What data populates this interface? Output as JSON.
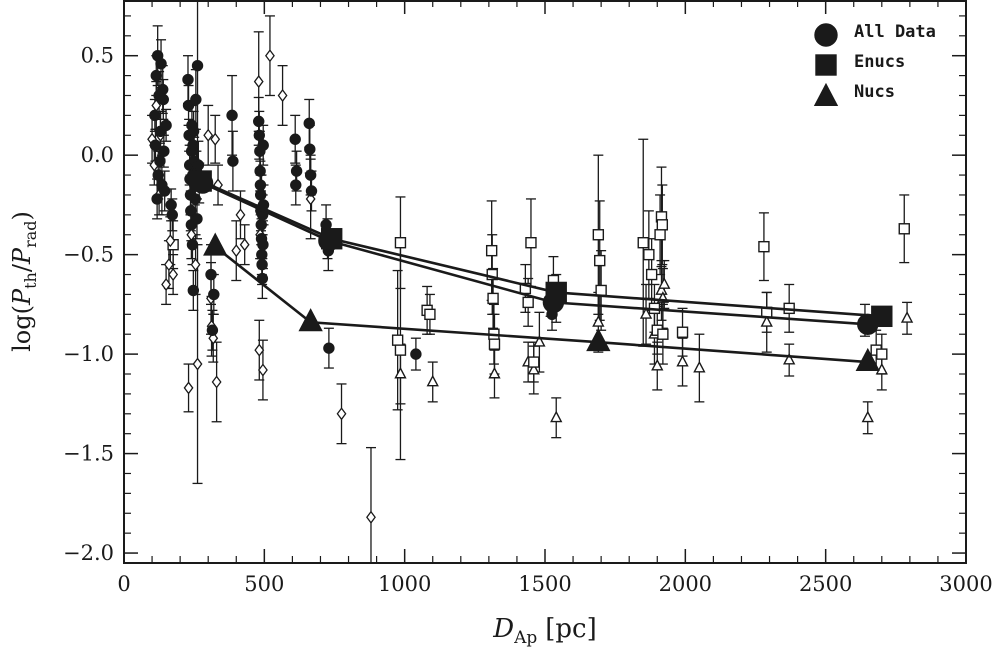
{
  "chart_data": {
    "type": "scatter",
    "x_axis": {
      "label_main": "D",
      "label_sub": "Ap",
      "label_unit": "[pc]",
      "range": [
        0,
        3000
      ],
      "ticks": [
        0,
        500,
        1000,
        1500,
        2000,
        2500,
        3000
      ],
      "tick_labels": [
        "0",
        "500",
        "1000",
        "1500",
        "2000",
        "2500",
        "3000"
      ]
    },
    "y_axis": {
      "label_prefix": "log(",
      "label_num": "P",
      "label_num_sub": "th",
      "label_sep": "/",
      "label_den": "P",
      "label_den_sub": "rad",
      "label_suffix": ")",
      "range": [
        -2.05,
        0.78
      ],
      "ticks": [
        0.5,
        0.0,
        -0.5,
        -1.0,
        -1.5,
        -2.0
      ],
      "tick_labels": [
        "0.5",
        "0.0",
        "−0.5",
        "−1.0",
        "−1.5",
        "−2.0"
      ]
    },
    "legend": {
      "position": "top-right",
      "entries": [
        {
          "label": "All Data",
          "marker": "circle"
        },
        {
          "label": "Enucs",
          "marker": "square"
        },
        {
          "label": "Nucs",
          "marker": "triangle"
        }
      ]
    },
    "mean_lines": [
      {
        "name": "All Data",
        "marker": "circle",
        "x": [
          280,
          730,
          1530,
          2650
        ],
        "y": [
          -0.14,
          -0.43,
          -0.74,
          -0.85
        ]
      },
      {
        "name": "Enucs",
        "marker": "square",
        "x": [
          275,
          740,
          1540,
          2700
        ],
        "y": [
          -0.13,
          -0.42,
          -0.69,
          -0.81
        ]
      },
      {
        "name": "Nucs",
        "marker": "triangle",
        "x": [
          325,
          665,
          1690,
          2650
        ],
        "y": [
          -0.46,
          -0.84,
          -0.94,
          -1.04
        ]
      }
    ],
    "points_filled_circle": [
      [
        110,
        0.2,
        0.08
      ],
      [
        112,
        0.05,
        0.08
      ],
      [
        115,
        0.4,
        0.1
      ],
      [
        118,
        -0.22,
        0.1
      ],
      [
        120,
        0.5,
        0.15
      ],
      [
        122,
        -0.1,
        0.12
      ],
      [
        125,
        0.3,
        0.12
      ],
      [
        128,
        -0.03,
        0.09
      ],
      [
        130,
        0.12,
        0.1
      ],
      [
        132,
        0.46,
        0.12
      ],
      [
        135,
        -0.15,
        0.15
      ],
      [
        138,
        0.33,
        0.12
      ],
      [
        140,
        0.28,
        0.1
      ],
      [
        142,
        0.02,
        0.08
      ],
      [
        145,
        -0.18,
        0.1
      ],
      [
        150,
        0.15,
        0.08
      ],
      [
        168,
        -0.25,
        0.08
      ],
      [
        172,
        -0.3,
        0.08
      ],
      [
        228,
        0.38,
        0.12
      ],
      [
        230,
        0.25,
        0.1
      ],
      [
        232,
        0.1,
        0.08
      ],
      [
        234,
        -0.05,
        0.1
      ],
      [
        235,
        -0.12,
        0.08
      ],
      [
        237,
        -0.2,
        0.1
      ],
      [
        238,
        -0.28,
        0.1
      ],
      [
        240,
        -0.35,
        0.08
      ],
      [
        241,
        0.02,
        0.12
      ],
      [
        242,
        0.15,
        0.1
      ],
      [
        244,
        -0.45,
        0.1
      ],
      [
        245,
        -0.1,
        0.12
      ],
      [
        246,
        0.05,
        0.1
      ],
      [
        247,
        -0.68,
        0.1
      ],
      [
        248,
        0.12,
        0.1
      ],
      [
        250,
        -0.03,
        0.12
      ],
      [
        252,
        -0.15,
        0.1
      ],
      [
        254,
        -0.22,
        0.08
      ],
      [
        256,
        0.28,
        0.15
      ],
      [
        258,
        -0.08,
        0.1
      ],
      [
        260,
        -0.32,
        0.1
      ],
      [
        262,
        0.45,
        0.5
      ],
      [
        265,
        -0.05,
        0.12
      ],
      [
        268,
        -0.14,
        0.1
      ],
      [
        310,
        -0.6,
        0.15
      ],
      [
        315,
        -0.88,
        0.1
      ],
      [
        320,
        -0.7,
        0.1
      ],
      [
        385,
        0.2,
        0.2
      ],
      [
        388,
        -0.03,
        0.15
      ],
      [
        480,
        0.17,
        0.12
      ],
      [
        482,
        0.1,
        0.12
      ],
      [
        484,
        0.02,
        0.1
      ],
      [
        485,
        -0.08,
        0.1
      ],
      [
        486,
        -0.15,
        0.12
      ],
      [
        487,
        -0.2,
        0.1
      ],
      [
        488,
        -0.28,
        0.1
      ],
      [
        489,
        -0.35,
        0.1
      ],
      [
        490,
        -0.42,
        0.1
      ],
      [
        491,
        -0.5,
        0.1
      ],
      [
        492,
        -0.55,
        0.1
      ],
      [
        493,
        -0.62,
        0.1
      ],
      [
        494,
        -0.3,
        0.1
      ],
      [
        495,
        -0.45,
        0.12
      ],
      [
        496,
        0.05,
        0.1
      ],
      [
        497,
        -0.25,
        0.1
      ],
      [
        610,
        0.08,
        0.12
      ],
      [
        612,
        -0.15,
        0.1
      ],
      [
        615,
        -0.08,
        0.1
      ],
      [
        660,
        0.16,
        0.12
      ],
      [
        662,
        0.03,
        0.12
      ],
      [
        665,
        -0.1,
        0.1
      ],
      [
        668,
        -0.18,
        0.1
      ],
      [
        720,
        -0.35,
        0.1
      ],
      [
        725,
        -0.42,
        0.1
      ],
      [
        728,
        -0.48,
        0.1
      ],
      [
        730,
        -0.97,
        0.1
      ],
      [
        1040,
        -1.0,
        0.08
      ],
      [
        1520,
        -0.73,
        0.08
      ],
      [
        1525,
        -0.8,
        0.08
      ],
      [
        2640,
        -0.83,
        0.08
      ]
    ],
    "points_open_diamond": [
      [
        100,
        0.08,
        0.12
      ],
      [
        108,
        -0.05,
        0.1
      ],
      [
        115,
        0.25,
        0.12
      ],
      [
        125,
        -0.2,
        0.1
      ],
      [
        130,
        0.1,
        0.12
      ],
      [
        150,
        -0.65,
        0.1
      ],
      [
        160,
        -0.55,
        0.12
      ],
      [
        165,
        -0.43,
        0.12
      ],
      [
        175,
        -0.6,
        0.1
      ],
      [
        230,
        -1.17,
        0.12
      ],
      [
        240,
        -0.4,
        0.12
      ],
      [
        255,
        -0.55,
        0.15
      ],
      [
        262,
        -1.05,
        0.6
      ],
      [
        300,
        0.1,
        0.15
      ],
      [
        310,
        -0.72,
        0.18
      ],
      [
        312,
        -0.86,
        0.15
      ],
      [
        318,
        -0.92,
        0.12
      ],
      [
        325,
        0.08,
        0.12
      ],
      [
        330,
        -1.14,
        0.2
      ],
      [
        335,
        -0.15,
        0.1
      ],
      [
        400,
        -0.48,
        0.15
      ],
      [
        415,
        -0.3,
        0.12
      ],
      [
        430,
        -0.45,
        0.1
      ],
      [
        480,
        0.37,
        0.25
      ],
      [
        482,
        -0.98,
        0.15
      ],
      [
        485,
        -0.4,
        0.12
      ],
      [
        490,
        -0.2,
        0.1
      ],
      [
        495,
        -1.08,
        0.15
      ],
      [
        520,
        0.5,
        0.2
      ],
      [
        565,
        0.3,
        0.15
      ],
      [
        665,
        -0.22,
        0.2
      ],
      [
        775,
        -1.3,
        0.15
      ],
      [
        880,
        -1.82,
        0.35
      ]
    ],
    "points_open_square": [
      [
        175,
        -0.45,
        0.12
      ],
      [
        985,
        -0.44,
        0.23
      ],
      [
        1080,
        -0.78,
        0.12
      ],
      [
        1090,
        -0.8,
        0.1
      ],
      [
        975,
        -0.93,
        0.35
      ],
      [
        985,
        -0.98,
        0.55
      ],
      [
        1310,
        -0.48,
        0.25
      ],
      [
        1312,
        -0.6,
        0.2
      ],
      [
        1315,
        -0.72,
        0.15
      ],
      [
        1318,
        -0.9,
        0.15
      ],
      [
        1320,
        -0.95,
        0.15
      ],
      [
        1430,
        -0.67,
        0.12
      ],
      [
        1440,
        -0.74,
        0.12
      ],
      [
        1450,
        -0.44,
        0.22
      ],
      [
        1460,
        -1.04,
        0.1
      ],
      [
        1530,
        -0.63,
        0.12
      ],
      [
        1540,
        -0.72,
        0.12
      ],
      [
        1690,
        -0.4,
        0.4
      ],
      [
        1695,
        -0.53,
        0.3
      ],
      [
        1700,
        -0.68,
        0.2
      ],
      [
        1850,
        -0.44,
        0.52
      ],
      [
        1870,
        -0.5,
        0.22
      ],
      [
        1880,
        -0.6,
        0.18
      ],
      [
        1890,
        -0.77,
        0.12
      ],
      [
        1900,
        -0.88,
        0.12
      ],
      [
        1910,
        -0.4,
        0.2
      ],
      [
        1915,
        -0.31,
        0.25
      ],
      [
        1918,
        -0.35,
        0.2
      ],
      [
        1920,
        -0.9,
        0.15
      ],
      [
        1990,
        -0.89,
        0.12
      ],
      [
        2280,
        -0.46,
        0.17
      ],
      [
        2290,
        -0.79,
        0.1
      ],
      [
        2370,
        -0.77,
        0.12
      ],
      [
        2680,
        -0.98,
        0.1
      ],
      [
        2700,
        -1.0,
        0.1
      ],
      [
        2780,
        -0.37,
        0.17
      ]
    ],
    "points_open_triangle": [
      [
        1320,
        -1.1,
        0.12
      ],
      [
        1440,
        -1.04,
        0.1
      ],
      [
        1460,
        -1.08,
        0.12
      ],
      [
        1480,
        -0.94,
        0.15
      ],
      [
        1100,
        -1.14,
        0.1
      ],
      [
        985,
        -1.1,
        0.15
      ],
      [
        1540,
        -1.32,
        0.1
      ],
      [
        1690,
        -0.84,
        0.15
      ],
      [
        1860,
        -0.8,
        0.15
      ],
      [
        1890,
        -0.9,
        0.15
      ],
      [
        1900,
        -1.06,
        0.12
      ],
      [
        1915,
        -0.68,
        0.15
      ],
      [
        1920,
        -0.72,
        0.15
      ],
      [
        1925,
        -0.65,
        0.12
      ],
      [
        1990,
        -1.04,
        0.12
      ],
      [
        2050,
        -1.07,
        0.17
      ],
      [
        2290,
        -0.84,
        0.15
      ],
      [
        2370,
        -1.03,
        0.08
      ],
      [
        2650,
        -1.32,
        0.08
      ],
      [
        2700,
        -1.08,
        0.1
      ],
      [
        2790,
        -0.82,
        0.08
      ]
    ]
  }
}
